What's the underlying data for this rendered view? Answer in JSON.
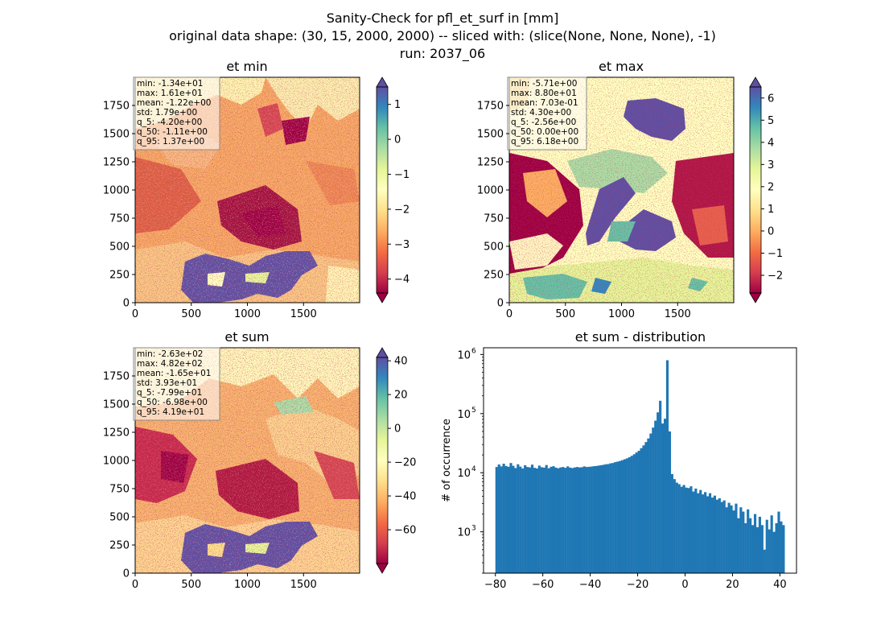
{
  "figure": {
    "suptitle_line1": "Sanity-Check for pfl_et_surf in [mm]",
    "suptitle_line2": "original data shape: (30, 15, 2000, 2000) -- sliced with: (slice(None, None, None), -1)",
    "suptitle_line3": "run: 2037_06"
  },
  "colors": {
    "spectral": [
      "#9e0142",
      "#d53e4f",
      "#f46d43",
      "#fdae61",
      "#fee08b",
      "#ffffbf",
      "#e6f598",
      "#abdda4",
      "#66c2a5",
      "#3288bd",
      "#5e4fa2"
    ],
    "hist_bar": "#1f77b4"
  },
  "chart_data": [
    {
      "type": "heatmap",
      "title": "et min",
      "xlim": [
        0,
        2000
      ],
      "ylim": [
        0,
        2000
      ],
      "x_ticks": [
        "0",
        "500",
        "1000",
        "1500"
      ],
      "y_ticks": [
        "0",
        "250",
        "500",
        "750",
        "1000",
        "1250",
        "1500",
        "1750"
      ],
      "colorbar": {
        "vmin": -4.4,
        "vmax": 1.5,
        "ticks": [
          1,
          0,
          -1,
          -2,
          -3,
          -4
        ],
        "tick_labels": [
          "1",
          "0",
          "−1",
          "−2",
          "−3",
          "−4"
        ],
        "extend": "both"
      },
      "stats": [
        "min: -1.34e+01",
        "max: 1.61e+01",
        "mean: -1.22e+00",
        "std: 1.79e+00",
        "q_5: -4.20e+00",
        "q_50: -1.11e+00",
        "q_95: 1.37e+00"
      ]
    },
    {
      "type": "heatmap",
      "title": "et max",
      "xlim": [
        0,
        2000
      ],
      "ylim": [
        0,
        2000
      ],
      "x_ticks": [
        "0",
        "500",
        "1000",
        "1500"
      ],
      "y_ticks": [
        "0",
        "250",
        "500",
        "750",
        "1000",
        "1250",
        "1500",
        "1750"
      ],
      "colorbar": {
        "vmin": -2.8,
        "vmax": 6.5,
        "ticks": [
          6,
          5,
          4,
          3,
          2,
          1,
          0,
          -1,
          -2
        ],
        "tick_labels": [
          "6",
          "5",
          "4",
          "3",
          "2",
          "1",
          "0",
          "−1",
          "−2"
        ],
        "extend": "both"
      },
      "stats": [
        "min: -5.71e+00",
        "max: 8.80e+01",
        "mean: 7.03e-01",
        "std: 4.30e+00",
        "q_5: -2.56e+00",
        "q_50: 0.00e+00",
        "q_95: 6.18e+00"
      ]
    },
    {
      "type": "heatmap",
      "title": "et sum",
      "xlim": [
        0,
        2000
      ],
      "ylim": [
        0,
        2000
      ],
      "x_ticks": [
        "0",
        "500",
        "1000",
        "1500"
      ],
      "y_ticks": [
        "0",
        "250",
        "500",
        "750",
        "1000",
        "1250",
        "1500",
        "1750"
      ],
      "colorbar": {
        "vmin": -80,
        "vmax": 42,
        "ticks": [
          40,
          20,
          0,
          -20,
          -40,
          -60
        ],
        "tick_labels": [
          "40",
          "20",
          "0",
          "−20",
          "−40",
          "−60"
        ],
        "extend": "both"
      },
      "stats": [
        "min: -2.63e+02",
        "max: 4.82e+02",
        "mean: -1.65e+01",
        "std: 3.93e+01",
        "q_5: -7.99e+01",
        "q_50: -6.98e+00",
        "q_95: 4.19e+01"
      ]
    },
    {
      "type": "bar",
      "title": "et sum - distribution",
      "ylabel": "# of occurrence",
      "y_scale": "log",
      "xlim": [
        -85,
        47
      ],
      "ylim": [
        200,
        1300000
      ],
      "x_ticks": [
        -80,
        -60,
        -40,
        -20,
        0,
        20,
        40
      ],
      "x_tick_labels": [
        "−80",
        "−60",
        "−40",
        "−20",
        "0",
        "20",
        "40"
      ],
      "y_ticks": [
        1000,
        10000,
        100000,
        1000000
      ],
      "y_tick_bases": [
        "10",
        "10",
        "10",
        "10"
      ],
      "y_tick_exps": [
        "3",
        "4",
        "5",
        "6"
      ],
      "bin_width": 1,
      "bins_start": -80,
      "values": [
        12500,
        13800,
        12800,
        14200,
        13000,
        12600,
        14600,
        13100,
        12000,
        13900,
        12700,
        11800,
        13400,
        12500,
        12300,
        13700,
        12100,
        11800,
        13200,
        12400,
        12200,
        13500,
        11900,
        12600,
        12900,
        12200,
        11900,
        12300,
        12500,
        12100,
        12800,
        12200,
        12000,
        12300,
        12500,
        12300,
        12400,
        12800,
        12500,
        12600,
        12700,
        12900,
        13000,
        13200,
        13400,
        13600,
        13900,
        14000,
        14400,
        14600,
        15100,
        15400,
        15800,
        16300,
        16900,
        17500,
        18300,
        19300,
        20500,
        22000,
        23500,
        26000,
        29000,
        33000,
        38000,
        46000,
        58000,
        76000,
        105000,
        165000,
        68000,
        82000,
        800000,
        50000,
        9500,
        7800,
        6800,
        6400,
        5800,
        6200,
        5600,
        5500,
        5900,
        4800,
        5400,
        4500,
        5100,
        4300,
        4700,
        4000,
        4500,
        3800,
        4100,
        3500,
        3700,
        3200,
        3400,
        2600,
        3100,
        2800,
        2300,
        3000,
        1700,
        2600,
        2200,
        1400,
        2400,
        1700,
        1300,
        2000,
        1200,
        1800,
        1300,
        500,
        1600,
        1100,
        1900,
        1000,
        1400,
        2200,
        1500,
        1300
      ]
    }
  ]
}
